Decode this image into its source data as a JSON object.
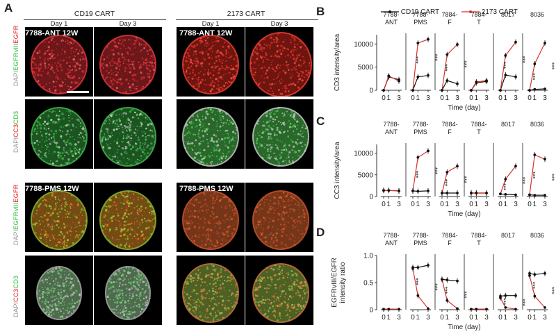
{
  "panel_a": {
    "letter": "A",
    "groups": [
      {
        "header": "CD19 CART"
      },
      {
        "header": "2173 CART"
      }
    ],
    "days": [
      "Day 1",
      "Day 3",
      "Day 1",
      "Day 3"
    ],
    "rows": [
      {
        "sample": "7788-ANT 12W"
      },
      {
        "sample": ""
      },
      {
        "sample": "7788-PMS 12W"
      },
      {
        "sample": ""
      }
    ],
    "stain_labels": {
      "egfr": [
        "DAPI",
        "EGFRvIII",
        "EGFR"
      ],
      "cc3": [
        "DAPI",
        "CC3",
        "CD3"
      ]
    },
    "colors": {
      "dapi": "#9a9a9a",
      "green": "#2fbf3a",
      "red": "#e02020"
    }
  },
  "legend": {
    "cd19": "CD19 CART",
    "c2173": "2173 CART",
    "cd19_color": "#111111",
    "c2173_color": "#d9302b"
  },
  "chart_data": [
    {
      "panel": "B",
      "type": "line",
      "ylabel": "CD3 intensity/area",
      "xlabel": "Time (day)",
      "x": [
        0,
        1,
        3
      ],
      "yticks": [
        "0",
        "5000",
        "10000"
      ],
      "ylim": [
        0,
        12000
      ],
      "facets": [
        {
          "name": "7788-\nANT",
          "cd19": [
            0,
            2900,
            2300
          ],
          "c2173": [
            0,
            3100,
            2000
          ],
          "sig": []
        },
        {
          "name": "7788-\nPMS",
          "cd19": [
            0,
            2900,
            3200
          ],
          "c2173": [
            0,
            10200,
            11000
          ],
          "sig": [
            "***",
            "***"
          ]
        },
        {
          "name": "7884-\nF",
          "cd19": [
            0,
            2100,
            1400
          ],
          "c2173": [
            0,
            7700,
            9900
          ],
          "sig": [
            "***",
            "***"
          ]
        },
        {
          "name": "7884-\nT",
          "cd19": [
            0,
            1600,
            1900
          ],
          "c2173": [
            0,
            1800,
            2100
          ],
          "sig": []
        },
        {
          "name": "8017",
          "cd19": [
            0,
            3300,
            2900
          ],
          "c2173": [
            0,
            7500,
            10400
          ],
          "sig": [
            "***",
            "***"
          ]
        },
        {
          "name": "8036",
          "cd19": [
            0,
            200,
            300
          ],
          "c2173": [
            0,
            5700,
            10200
          ],
          "sig": [
            "***",
            "***"
          ]
        }
      ]
    },
    {
      "panel": "C",
      "type": "line",
      "ylabel": "CC3 intensity/area",
      "xlabel": "Time (day)",
      "x": [
        0,
        1,
        3
      ],
      "yticks": [
        "0",
        "5000",
        "10000"
      ],
      "ylim": [
        0,
        12000
      ],
      "facets": [
        {
          "name": "7788-\nANT",
          "cd19": [
            1400,
            1400,
            1300
          ],
          "c2173": [
            1400,
            1400,
            1300
          ],
          "sig": []
        },
        {
          "name": "7788-\nPMS",
          "cd19": [
            1300,
            1200,
            1300
          ],
          "c2173": [
            1300,
            9000,
            10500
          ],
          "sig": [
            "***",
            "***"
          ]
        },
        {
          "name": "7884-\nF",
          "cd19": [
            800,
            800,
            800
          ],
          "c2173": [
            800,
            5600,
            7000
          ],
          "sig": [
            "***",
            "***"
          ]
        },
        {
          "name": "7884-\nT",
          "cd19": [
            800,
            800,
            800
          ],
          "c2173": [
            800,
            800,
            800
          ],
          "sig": []
        },
        {
          "name": "8017",
          "cd19": [
            600,
            500,
            400
          ],
          "c2173": [
            600,
            4000,
            7000
          ],
          "sig": [
            "***",
            "***"
          ]
        },
        {
          "name": "8036",
          "cd19": [
            400,
            300,
            300
          ],
          "c2173": [
            400,
            9600,
            8600
          ],
          "sig": [
            "***",
            "***"
          ]
        }
      ]
    },
    {
      "panel": "D",
      "type": "line",
      "ylabel": "EGFRvIII/EGFR\nintensity ratio",
      "xlabel": "Time (day)",
      "x": [
        0,
        1,
        3
      ],
      "yticks": [
        "0",
        "0.5",
        "1.0"
      ],
      "ylim": [
        0,
        1.0
      ],
      "facets": [
        {
          "name": "7788-\nANT",
          "cd19": [
            0.01,
            0.01,
            0.01
          ],
          "c2173": [
            0.01,
            0.01,
            0.01
          ],
          "sig": []
        },
        {
          "name": "7788-\nPMS",
          "cd19": [
            0.78,
            0.78,
            0.82
          ],
          "c2173": [
            0.76,
            0.26,
            0.02
          ],
          "sig": [
            "***",
            "***"
          ]
        },
        {
          "name": "7884-\nF",
          "cd19": [
            0.56,
            0.55,
            0.53
          ],
          "c2173": [
            0.56,
            0.17,
            0.02
          ],
          "sig": [
            "***",
            "***"
          ]
        },
        {
          "name": "7884-\nT",
          "cd19": [
            0.01,
            0.01,
            0.01
          ],
          "c2173": [
            0.01,
            0.01,
            0.01
          ],
          "sig": []
        },
        {
          "name": "8017",
          "cd19": [
            0.25,
            0.26,
            0.26
          ],
          "c2173": [
            0.22,
            0.04,
            0.01
          ],
          "sig": [
            "***",
            "***"
          ]
        },
        {
          "name": "8036",
          "cd19": [
            0.67,
            0.65,
            0.67
          ],
          "c2173": [
            0.63,
            0.25,
            0.04
          ],
          "sig": [
            "***",
            "***"
          ]
        }
      ]
    }
  ]
}
